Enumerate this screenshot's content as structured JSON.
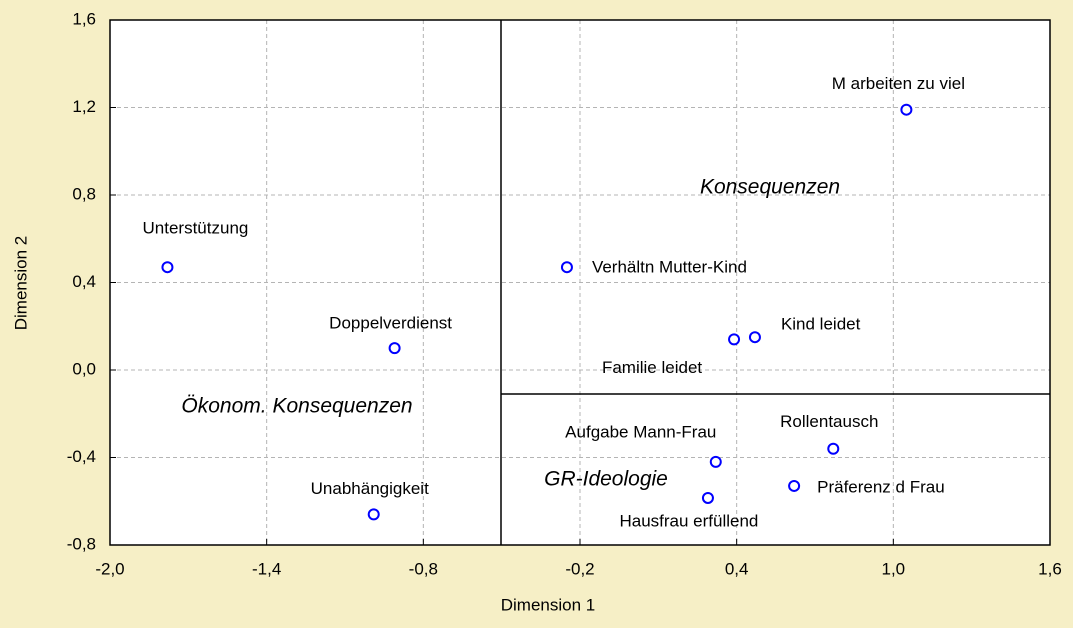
{
  "chart_data": {
    "type": "scatter",
    "xlabel": "Dimension 1",
    "ylabel": "Dimension 2",
    "xlim": [
      -2.0,
      1.6
    ],
    "xticks": [
      {
        "value": -2.0,
        "label": "-2,0"
      },
      {
        "value": -1.4,
        "label": "-1,4"
      },
      {
        "value": -0.8,
        "label": "-0,8"
      },
      {
        "value": -0.2,
        "label": "-0,2"
      },
      {
        "value": 0.4,
        "label": "0,4"
      },
      {
        "value": 1.0,
        "label": "1,0"
      },
      {
        "value": 1.6,
        "label": "1,6"
      }
    ],
    "ylim": [
      -0.8,
      1.6
    ],
    "yticks": [
      {
        "value": -0.8,
        "label": "-0,8"
      },
      {
        "value": -0.4,
        "label": "-0,4"
      },
      {
        "value": 0.0,
        "label": "0,0"
      },
      {
        "value": 0.4,
        "label": "0,4"
      },
      {
        "value": 0.8,
        "label": "0,8"
      },
      {
        "value": 1.2,
        "label": "1,2"
      },
      {
        "value": 1.6,
        "label": "1,6"
      }
    ],
    "grid": true,
    "color": "#0000ff",
    "labels": [
      "Unterstützung",
      "Doppelverdienst",
      "Unabhängigkeit",
      "Verhältn Mutter-Kind",
      "Familie leidet",
      "Kind leidet",
      "M arbeiten zu viel",
      "Rollentausch",
      "Aufgabe Mann-Frau",
      "Präferenz d Frau",
      "Hausfrau erfüllend"
    ],
    "x": [
      -1.78,
      -0.91,
      -0.99,
      -0.25,
      0.39,
      0.47,
      1.05,
      0.77,
      0.32,
      0.62,
      0.29
    ],
    "values": [
      0.47,
      0.1,
      -0.66,
      0.47,
      0.14,
      0.15,
      1.19,
      -0.36,
      -0.42,
      -0.53,
      -0.585
    ],
    "annotations": [
      "Konsequenzen",
      "Ökonom. Konsequenzen",
      "GR-Ideologie"
    ]
  }
}
